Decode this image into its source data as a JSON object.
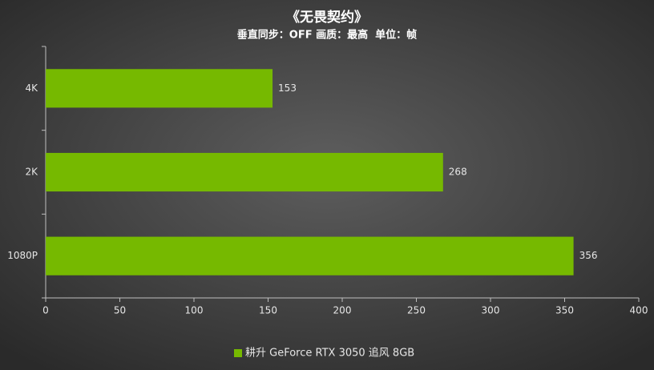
{
  "chart_data": {
    "type": "hbar",
    "title": "《无畏契约》",
    "subtitle": "垂直同步：OFF 画质：最高  单位：帧",
    "categories": [
      "4K",
      "2K",
      "1080P"
    ],
    "series": [
      {
        "name": "耕升 GeForce RTX 3050 追风 8GB",
        "color": "#76b900",
        "values": [
          153,
          268,
          356
        ]
      }
    ],
    "xlim": [
      0,
      400
    ],
    "xticks": [
      0,
      50,
      100,
      150,
      200,
      250,
      300,
      350,
      400
    ],
    "grid": false
  }
}
